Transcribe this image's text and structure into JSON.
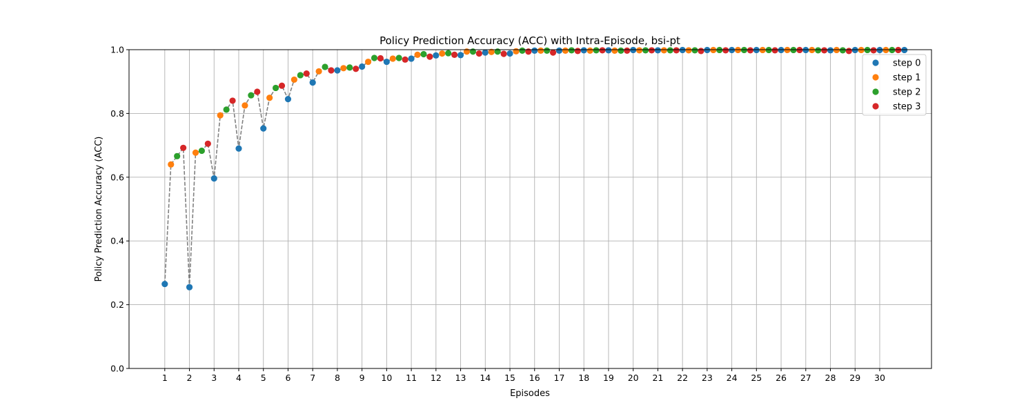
{
  "chart_data": {
    "type": "scatter",
    "title": "Policy Prediction Accuracy (ACC) with Intra-Episode, bsi-pt",
    "xlabel": "Episodes",
    "ylabel": "Policy Prediction Accuracy (ACC)",
    "xlim": [
      -0.45,
      32.1
    ],
    "ylim": [
      0.0,
      1.0
    ],
    "x_ticks": [
      1,
      2,
      3,
      4,
      5,
      6,
      7,
      8,
      9,
      10,
      11,
      12,
      13,
      14,
      15,
      16,
      17,
      18,
      19,
      20,
      21,
      22,
      23,
      24,
      25,
      26,
      27,
      28,
      29,
      30
    ],
    "y_ticks": [
      0.0,
      0.2,
      0.4,
      0.6,
      0.8,
      1.0
    ],
    "grid": true,
    "legend_position": "upper right",
    "connecting_line_color": "#808080",
    "series": [
      {
        "name": "step 0",
        "color": "#1f77b4",
        "x": [
          1,
          2,
          3,
          4,
          5,
          6,
          7,
          8,
          9,
          10,
          11,
          12,
          13,
          14,
          15,
          16,
          17,
          18,
          19,
          20,
          21,
          22,
          23,
          24,
          25,
          26,
          27,
          28,
          29,
          30,
          31
        ],
        "values": [
          0.265,
          0.255,
          0.596,
          0.69,
          0.753,
          0.845,
          0.897,
          0.935,
          0.947,
          0.962,
          0.972,
          0.982,
          0.983,
          0.991,
          0.988,
          0.997,
          0.997,
          0.998,
          0.998,
          0.999,
          0.998,
          0.999,
          0.999,
          0.999,
          0.999,
          0.999,
          0.999,
          0.998,
          0.999,
          0.999,
          0.999
        ]
      },
      {
        "name": "step 1",
        "color": "#ff7f0e",
        "x": [
          1.25,
          2.25,
          3.25,
          4.25,
          5.25,
          6.25,
          7.25,
          8.25,
          9.25,
          10.25,
          11.25,
          12.25,
          13.25,
          14.25,
          15.25,
          16.25,
          17.25,
          18.25,
          19.25,
          20.25,
          21.25,
          22.25,
          23.25,
          24.25,
          25.25,
          26.25,
          27.25,
          28.25,
          29.25,
          30.25
        ],
        "values": [
          0.64,
          0.677,
          0.794,
          0.825,
          0.849,
          0.906,
          0.932,
          0.942,
          0.962,
          0.972,
          0.984,
          0.988,
          0.994,
          0.993,
          0.995,
          0.997,
          0.997,
          0.997,
          0.997,
          0.998,
          0.998,
          0.998,
          0.999,
          0.999,
          0.999,
          0.999,
          0.999,
          0.999,
          0.999,
          0.999
        ]
      },
      {
        "name": "step 2",
        "color": "#2ca02c",
        "x": [
          1.5,
          2.5,
          3.5,
          4.5,
          5.5,
          6.5,
          7.5,
          8.5,
          9.5,
          10.5,
          11.5,
          12.5,
          13.5,
          14.5,
          15.5,
          16.5,
          17.5,
          18.5,
          19.5,
          20.5,
          21.5,
          22.5,
          23.5,
          24.5,
          25.5,
          26.5,
          27.5,
          28.5,
          29.5,
          30.5
        ],
        "values": [
          0.666,
          0.683,
          0.812,
          0.857,
          0.88,
          0.92,
          0.946,
          0.944,
          0.974,
          0.974,
          0.986,
          0.989,
          0.994,
          0.994,
          0.997,
          0.997,
          0.998,
          0.998,
          0.997,
          0.998,
          0.998,
          0.998,
          0.999,
          0.999,
          0.999,
          0.999,
          0.998,
          0.998,
          0.999,
          0.999
        ]
      },
      {
        "name": "step 3",
        "color": "#d62728",
        "x": [
          1.75,
          2.75,
          3.75,
          4.75,
          5.75,
          6.75,
          7.75,
          8.75,
          9.75,
          10.75,
          11.75,
          12.75,
          13.75,
          14.75,
          15.75,
          16.75,
          17.75,
          18.75,
          19.75,
          20.75,
          21.75,
          22.75,
          23.75,
          24.75,
          25.75,
          26.75,
          27.75,
          28.75,
          29.75,
          30.75
        ],
        "values": [
          0.692,
          0.705,
          0.84,
          0.868,
          0.887,
          0.925,
          0.935,
          0.94,
          0.973,
          0.969,
          0.978,
          0.984,
          0.988,
          0.987,
          0.994,
          0.991,
          0.996,
          0.998,
          0.997,
          0.998,
          0.998,
          0.996,
          0.998,
          0.998,
          0.998,
          0.999,
          0.998,
          0.996,
          0.998,
          0.999
        ]
      }
    ]
  }
}
